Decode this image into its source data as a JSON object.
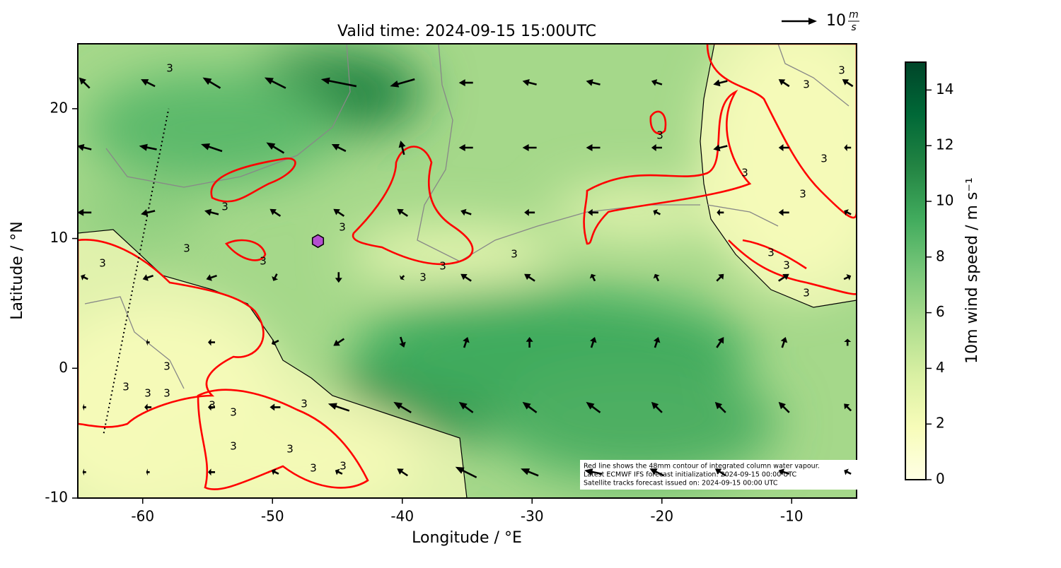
{
  "chart_data": {
    "type": "map",
    "title": "Valid time: 2024-09-15 15:00UTC",
    "xlabel": "Longitude / °E",
    "ylabel": "Latitude / °N",
    "xlim": [
      -65,
      -5
    ],
    "ylim": [
      -10,
      25
    ],
    "xticks": [
      -60,
      -50,
      -40,
      -30,
      -20,
      -10
    ],
    "yticks": [
      -10,
      0,
      10,
      20
    ],
    "colorbar": {
      "label": "10m wind speed / m s⁻¹",
      "lim": [
        0,
        15
      ],
      "ticks": [
        0,
        2,
        4,
        6,
        8,
        10,
        12,
        14
      ],
      "colors": [
        "#ffffe5",
        "#f7fcb9",
        "#d9f0a3",
        "#addd8e",
        "#78c679",
        "#41ab5d",
        "#238443",
        "#006837",
        "#004529"
      ]
    },
    "contour_label": "3",
    "contour_color": "#ff0000",
    "annotation": [
      "Red line shows the 48mm contour of integrated column water vapour.",
      "Latest ECMWF IFS forecast initialization: 2024-09-15 00:00 UTC",
      "Satellite tracks forecast issued on: 2024-09-15 00:00 UTC"
    ],
    "quiver_key": {
      "value": 10,
      "unit_top": "m",
      "unit_bottom": "s"
    },
    "marker": {
      "lon": -46.5,
      "lat": 9.8,
      "color": "#b44fd0"
    },
    "track": {
      "lon": [
        -63,
        -58
      ],
      "lat": [
        -5,
        20
      ]
    },
    "wind": {
      "lon": [
        -64.5,
        -59.6,
        -54.7,
        -49.8,
        -44.9,
        -40,
        -35.1,
        -30.2,
        -25.3,
        -20.4,
        -15.5,
        -10.6,
        -5.7
      ],
      "lat": [
        22,
        17,
        12,
        7,
        2,
        -3,
        -8
      ],
      "u": [
        [
          -3,
          -4,
          -5,
          -6,
          -10,
          -7,
          -4,
          -4,
          -4,
          -3,
          -4,
          -3,
          -3
        ],
        [
          -4,
          -5,
          -6,
          -5,
          -4,
          -1,
          -4,
          -4,
          -4,
          -3,
          -4,
          -3,
          -2
        ],
        [
          -4,
          -4,
          -4,
          -3,
          -3,
          -3,
          -3,
          -3,
          -3,
          -2,
          -2,
          -3,
          -2
        ],
        [
          -2,
          -3,
          -3,
          -1,
          0,
          -1,
          -3,
          -3,
          -1,
          -1,
          2,
          3,
          2
        ],
        [
          0,
          -1,
          -2,
          -2,
          -3,
          1,
          1,
          0,
          1,
          1,
          2,
          1,
          0
        ],
        [
          -1,
          -2,
          -2,
          -3,
          -6,
          -5,
          -4,
          -4,
          -4,
          -3,
          -3,
          -3,
          -2
        ],
        [
          -1,
          -1,
          -2,
          -2,
          -2,
          -3,
          -6,
          -5,
          -5,
          -4,
          -3,
          -3,
          -2
        ]
      ],
      "v": [
        [
          3,
          2,
          3,
          3,
          2,
          -2,
          0,
          1,
          1,
          1,
          -1,
          2,
          2
        ],
        [
          1,
          1,
          2,
          3,
          2,
          4,
          0,
          0,
          0,
          0,
          -1,
          0,
          0
        ],
        [
          0,
          -1,
          1,
          2,
          2,
          2,
          1,
          0,
          0,
          1,
          0,
          0,
          1
        ],
        [
          1,
          -1,
          -1,
          -2,
          -3,
          -1,
          2,
          2,
          2,
          2,
          2,
          2,
          1
        ],
        [
          0,
          0,
          0,
          -1,
          -2,
          -3,
          3,
          3,
          3,
          3,
          3,
          3,
          2
        ],
        [
          0,
          0,
          0,
          0,
          2,
          3,
          3,
          3,
          3,
          3,
          3,
          3,
          2
        ],
        [
          0,
          0,
          0,
          1,
          1,
          2,
          3,
          2,
          1,
          2,
          2,
          1,
          1
        ]
      ]
    }
  }
}
